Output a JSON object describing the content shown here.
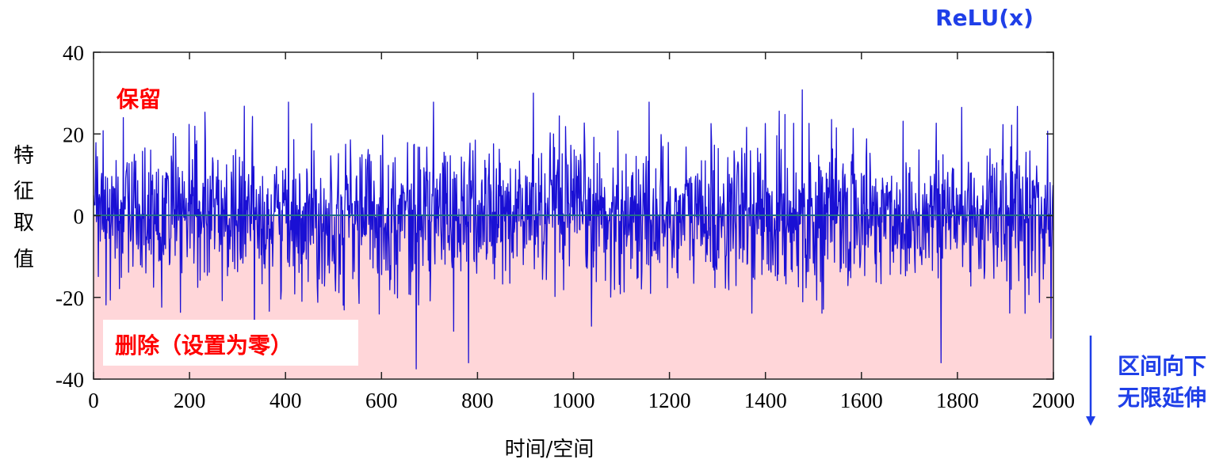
{
  "chart_data": {
    "type": "line",
    "title": "ReLU(x)",
    "xlabel": "时间/空间",
    "ylabel": "特征取值",
    "xlim": [
      0,
      2000
    ],
    "ylim": [
      -40,
      40
    ],
    "x_ticks": [
      "0",
      "200",
      "400",
      "600",
      "800",
      "1000",
      "1200",
      "1400",
      "1600",
      "1800",
      "2000"
    ],
    "y_ticks": [
      "40",
      "20",
      "0",
      "-20",
      "-40"
    ],
    "grid": false,
    "n_points": 2000,
    "signal": {
      "distribution": "zero-mean random noise",
      "std_approx": 9,
      "min_approx": -37.5,
      "max_approx": 30.8
    },
    "series": [
      {
        "values_summary": "random noise, 2000 samples, mostly within -25..25",
        "color": "#1a10d4"
      }
    ],
    "peaks": [
      {
        "x": 62,
        "y": 24
      },
      {
        "x": 916,
        "y": 30
      },
      {
        "x": 1477,
        "y": 30.8
      },
      {
        "x": 1809,
        "y": 26.5
      },
      {
        "x": 672,
        "y": -37.5
      },
      {
        "x": 781,
        "y": -36
      },
      {
        "x": 1766,
        "y": -36
      },
      {
        "x": 1995,
        "y": -30
      }
    ],
    "regions": [
      {
        "label": "保留",
        "range": [
          0,
          40
        ],
        "color": "#ffffff"
      },
      {
        "label": "删除（设置为零）",
        "range": [
          -40,
          0
        ],
        "color": "#ffd6d9"
      }
    ],
    "zero_line_color": "#1f6f86",
    "annotations": {
      "relu_label": "ReLU(x)",
      "keep_label": "保留",
      "delete_label": "删除（设置为零）",
      "extend_label_line1": "区间向下",
      "extend_label_line2": "无限延伸"
    },
    "colors": {
      "line": "#1a10d4",
      "annotation_red": "#ff0000",
      "annotation_blue": "#1f3fe8",
      "negative_fill": "#ffd6d9"
    }
  }
}
